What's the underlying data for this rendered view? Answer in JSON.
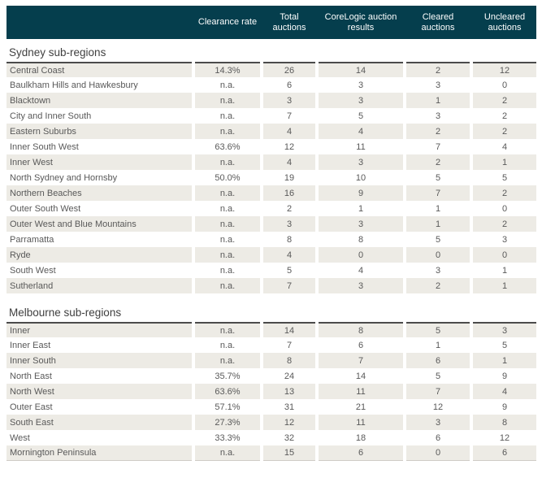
{
  "colors": {
    "header_bg": "#053e4d",
    "header_text": "#ffffff",
    "row_alt_bg": "#edebe5",
    "body_text": "#595959",
    "section_title_text": "#3f3f3f",
    "section_rule": "#4b4b4b",
    "bottom_rule": "#cfccc6"
  },
  "table": {
    "columns": [
      "Clearance rate",
      "Total auctions",
      "CoreLogic auction results",
      "Cleared auctions",
      "Uncleared auctions"
    ],
    "row_format": [
      "region",
      "clearance_rate",
      "total_auctions",
      "corelogic_auction_results",
      "cleared_auctions",
      "uncleared_auctions"
    ],
    "na_label": "n.a.",
    "sections": [
      {
        "title": "Sydney sub-regions",
        "rows": [
          [
            "Central Coast",
            "14.3%",
            "26",
            "14",
            "2",
            "12"
          ],
          [
            "Baulkham Hills and Hawkesbury",
            "n.a.",
            "6",
            "3",
            "3",
            "0"
          ],
          [
            "Blacktown",
            "n.a.",
            "3",
            "3",
            "1",
            "2"
          ],
          [
            "City and Inner South",
            "n.a.",
            "7",
            "5",
            "3",
            "2"
          ],
          [
            "Eastern Suburbs",
            "n.a.",
            "4",
            "4",
            "2",
            "2"
          ],
          [
            "Inner South West",
            "63.6%",
            "12",
            "11",
            "7",
            "4"
          ],
          [
            "Inner West",
            "n.a.",
            "4",
            "3",
            "2",
            "1"
          ],
          [
            "North Sydney and Hornsby",
            "50.0%",
            "19",
            "10",
            "5",
            "5"
          ],
          [
            "Northern Beaches",
            "n.a.",
            "16",
            "9",
            "7",
            "2"
          ],
          [
            "Outer South West",
            "n.a.",
            "2",
            "1",
            "1",
            "0"
          ],
          [
            "Outer West and Blue Mountains",
            "n.a.",
            "3",
            "3",
            "1",
            "2"
          ],
          [
            "Parramatta",
            "n.a.",
            "8",
            "8",
            "5",
            "3"
          ],
          [
            "Ryde",
            "n.a.",
            "4",
            "0",
            "0",
            "0"
          ],
          [
            "South West",
            "n.a.",
            "5",
            "4",
            "3",
            "1"
          ],
          [
            "Sutherland",
            "n.a.",
            "7",
            "3",
            "2",
            "1"
          ]
        ]
      },
      {
        "title": "Melbourne sub-regions",
        "rows": [
          [
            "Inner",
            "n.a.",
            "14",
            "8",
            "5",
            "3"
          ],
          [
            "Inner East",
            "n.a.",
            "7",
            "6",
            "1",
            "5"
          ],
          [
            "Inner South",
            "n.a.",
            "8",
            "7",
            "6",
            "1"
          ],
          [
            "North East",
            "35.7%",
            "24",
            "14",
            "5",
            "9"
          ],
          [
            "North West",
            "63.6%",
            "13",
            "11",
            "7",
            "4"
          ],
          [
            "Outer East",
            "57.1%",
            "31",
            "21",
            "12",
            "9"
          ],
          [
            "South East",
            "27.3%",
            "12",
            "11",
            "3",
            "8"
          ],
          [
            "West",
            "33.3%",
            "32",
            "18",
            "6",
            "12"
          ],
          [
            "Mornington Peninsula",
            "n.a.",
            "15",
            "6",
            "0",
            "6"
          ]
        ]
      }
    ]
  }
}
